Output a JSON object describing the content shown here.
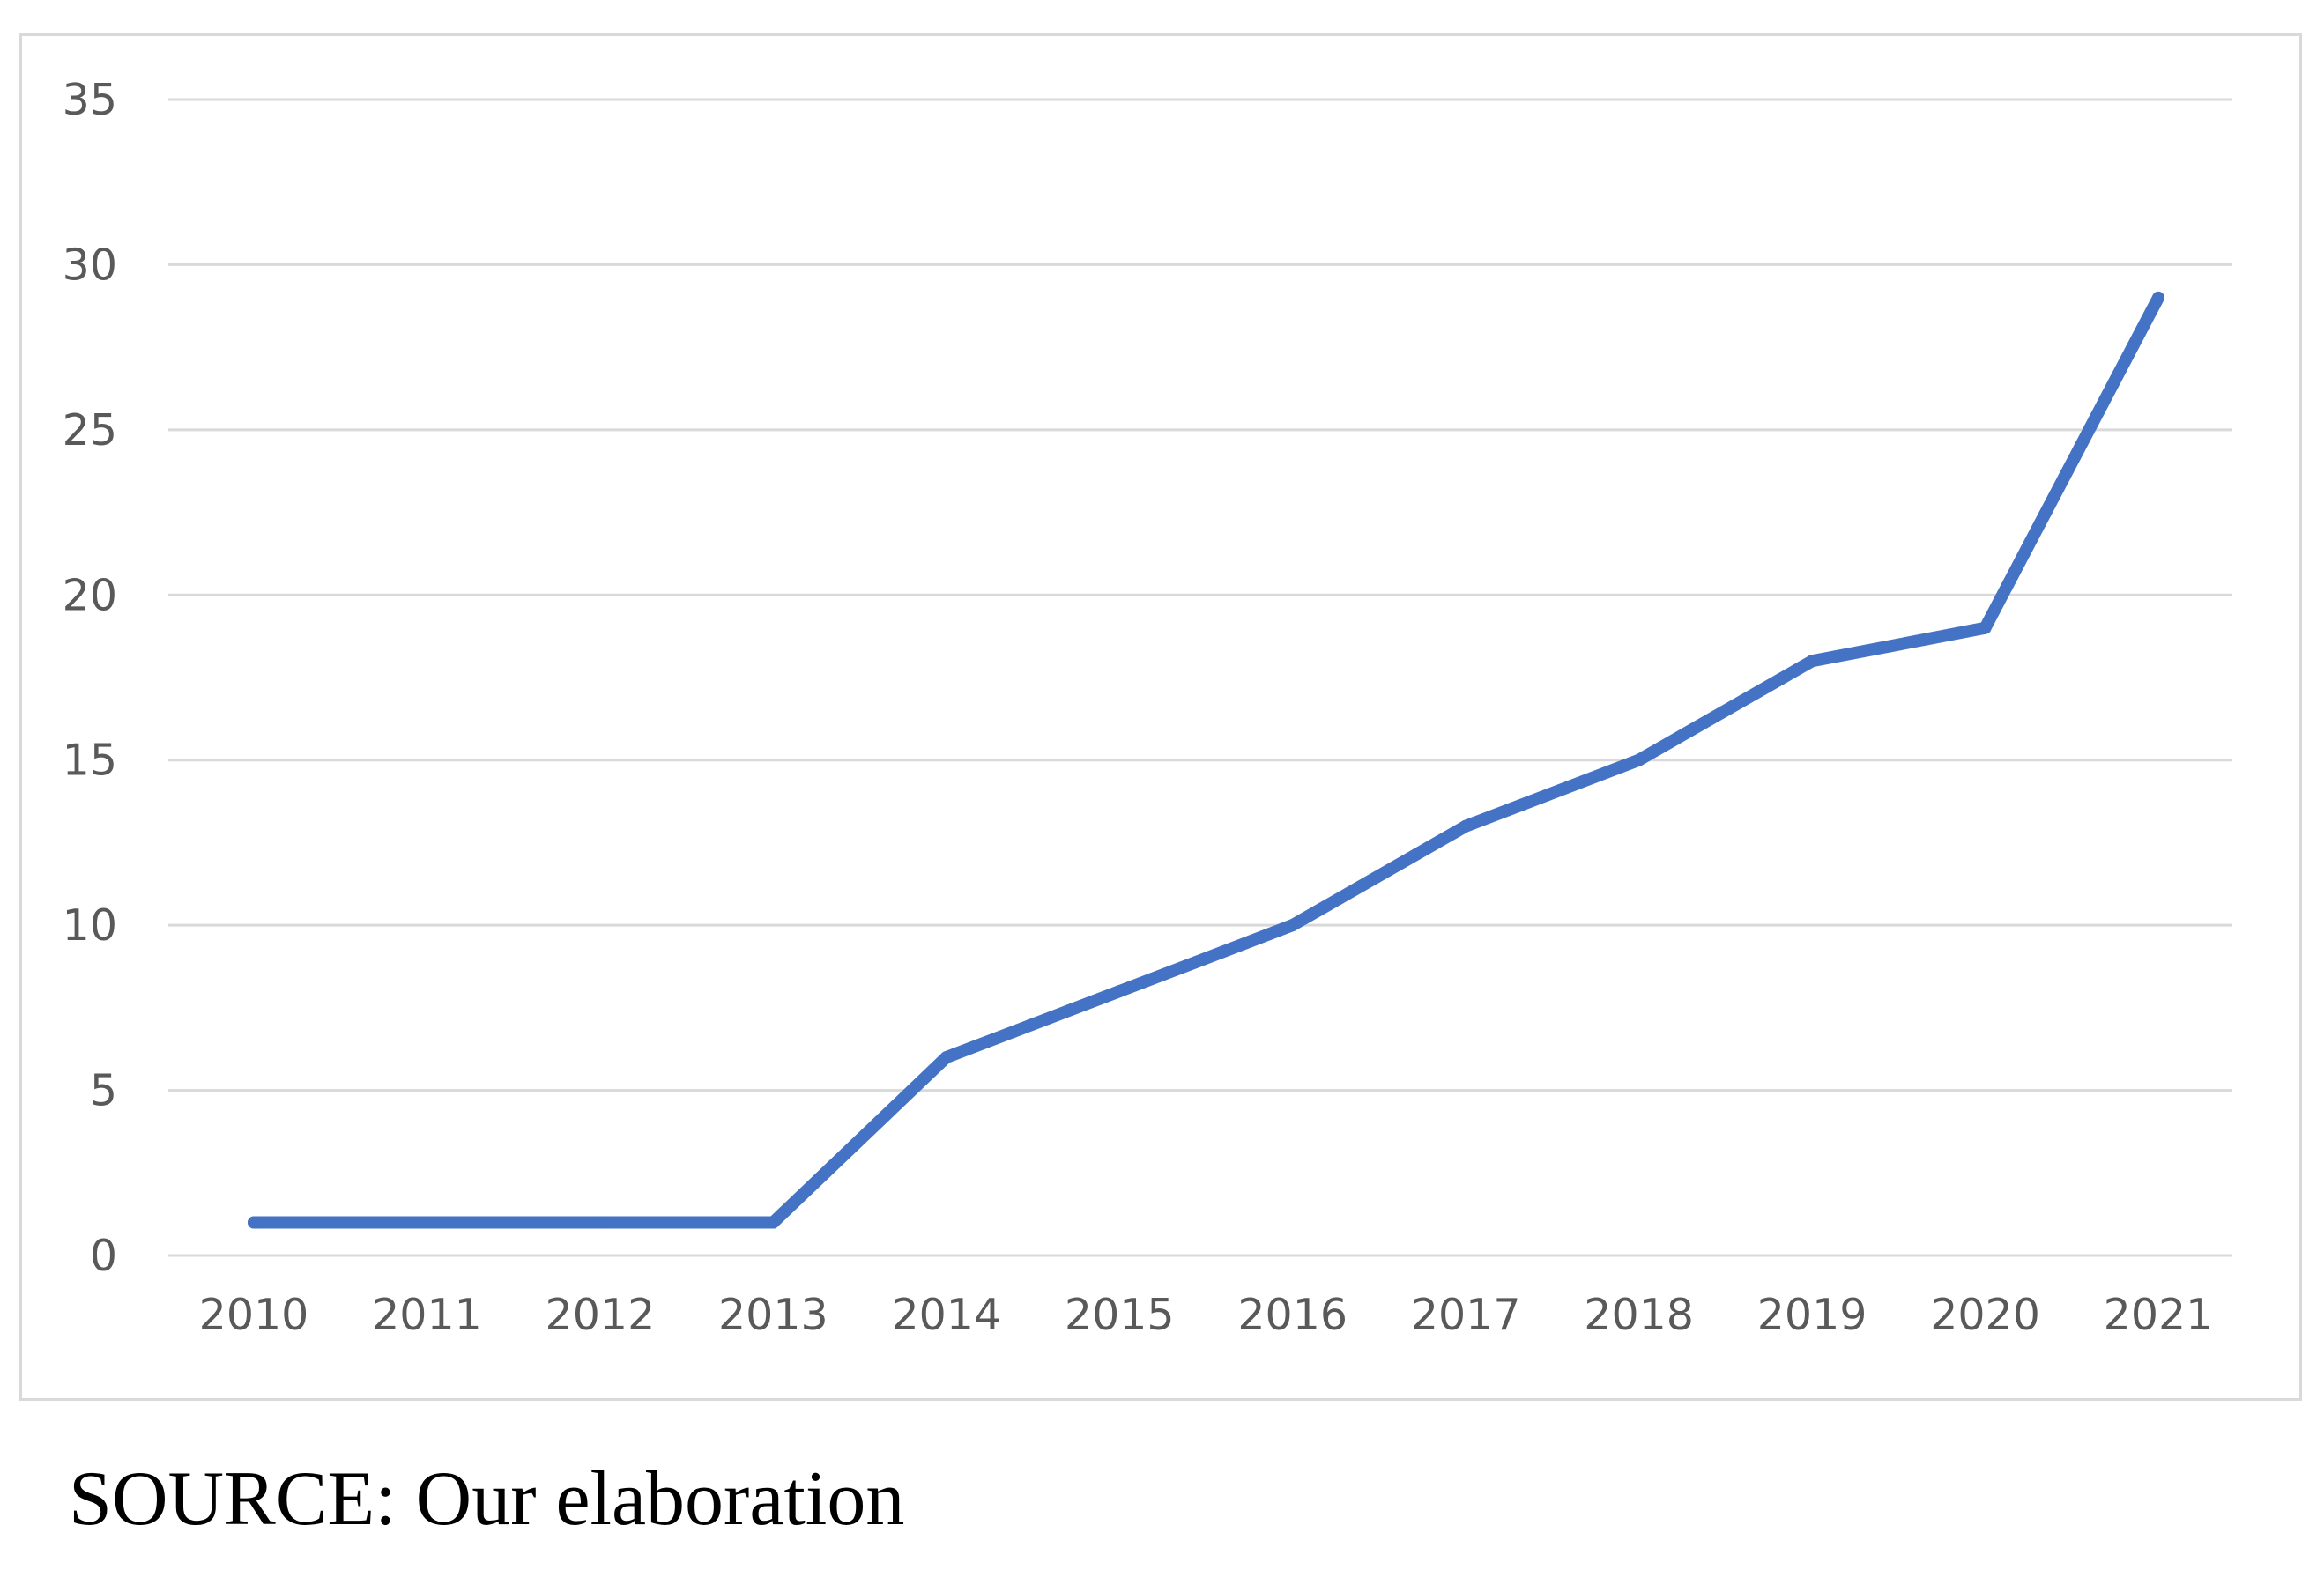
{
  "chart_data": {
    "type": "line",
    "title": "",
    "xlabel": "",
    "ylabel": "",
    "categories": [
      "2010",
      "2011",
      "2012",
      "2013",
      "2014",
      "2015",
      "2016",
      "2017",
      "2018",
      "2019",
      "2020",
      "2021"
    ],
    "series": [
      {
        "values": [
          1,
          1,
          1,
          1,
          6,
          8,
          10,
          13,
          15,
          18,
          19,
          29
        ],
        "color": "#4472c4"
      }
    ],
    "ylim": [
      0,
      35
    ],
    "yticks": [
      0,
      5,
      10,
      15,
      20,
      25,
      30,
      35
    ],
    "grid": true,
    "legend": "none",
    "gridline_color": "#d9d9d9",
    "tick_label_color": "#595959"
  },
  "source_note": "SOURCE: Our elaboration"
}
